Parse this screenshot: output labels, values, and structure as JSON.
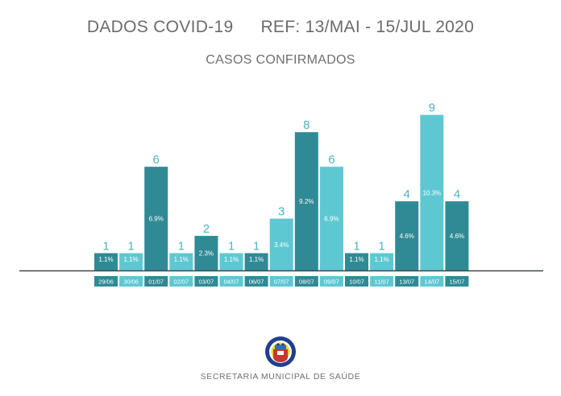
{
  "header": {
    "title": "DADOS COVID-19",
    "reference": "REF: 13/MAI - 15/JUL 2020",
    "subtitle": "CASOS CONFIRMADOS"
  },
  "footer": {
    "text": "SECRETARIA MUNICIPAL DE SAÚDE"
  },
  "logo": {
    "icon": "municipal-seal-icon"
  },
  "colors": {
    "dark_bar": "#2f8a95",
    "light_bar": "#5ec8d2",
    "value_label": "#4fb3bf",
    "axis": "#3a4a4f"
  },
  "chart_data": {
    "type": "bar",
    "title": "CASOS CONFIRMADOS",
    "xlabel": "",
    "ylabel": "",
    "ylim": [
      0,
      9.5
    ],
    "grid": false,
    "categories": [
      "29/06",
      "30/06",
      "01/07",
      "02/07",
      "03/07",
      "04/07",
      "06/07",
      "07/07",
      "08/07",
      "09/07",
      "10/07",
      "11/07",
      "13/07",
      "14/07",
      "15/07"
    ],
    "values": [
      1,
      1,
      6,
      1,
      2,
      1,
      1,
      3,
      8,
      6,
      1,
      1,
      4,
      9,
      4
    ],
    "percent_labels": [
      "1.1%",
      "1.1%",
      "6.9%",
      "1.1%",
      "2.3%",
      "1.1%",
      "1.1%",
      "3.4%",
      "9.2%",
      "6.9%",
      "1.1%",
      "1.1%",
      "4.6%",
      "10.3%",
      "4.6%"
    ],
    "bar_shade": [
      "dark",
      "light",
      "dark",
      "light",
      "dark",
      "light",
      "dark",
      "light",
      "dark",
      "light",
      "dark",
      "light",
      "dark",
      "light",
      "dark"
    ]
  }
}
